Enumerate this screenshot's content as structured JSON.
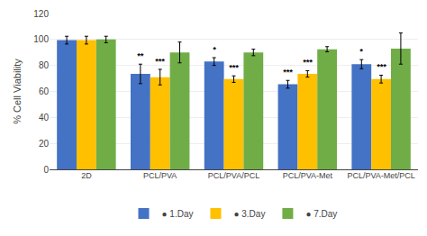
{
  "chart_data": {
    "type": "bar",
    "categories": [
      "2D",
      "PCL/PVA",
      "PCL/PVA/PCL",
      "PCL/PVA-Met",
      "PCL/PVA-Met/PCL"
    ],
    "series": [
      {
        "name": "● 1.Day",
        "color": "#4472C4",
        "values": [
          99.5,
          73.5,
          83.0,
          65.5,
          81.0
        ],
        "errors": [
          3.0,
          7.5,
          3.0,
          3.0,
          3.5
        ],
        "annotations": [
          null,
          "**",
          "*",
          "***",
          "*"
        ]
      },
      {
        "name": "● 3.Day",
        "color": "#FFC000",
        "values": [
          99.5,
          71.0,
          69.5,
          73.5,
          69.5
        ],
        "errors": [
          3.0,
          6.0,
          2.5,
          2.5,
          3.0
        ],
        "annotations": [
          null,
          "***",
          "***",
          "***",
          "***"
        ]
      },
      {
        "name": "● 7.Day",
        "color": "#70AD47",
        "values": [
          100.0,
          90.0,
          90.0,
          92.5,
          93.0
        ],
        "errors": [
          2.5,
          8.0,
          2.5,
          2.0,
          12.0
        ]
      }
    ],
    "ylabel": "% Cell Viability",
    "ylim": [
      0,
      120
    ],
    "yticks": [
      0,
      20,
      40,
      60,
      80,
      100,
      120
    ],
    "grid": true,
    "legend": "bottom"
  }
}
